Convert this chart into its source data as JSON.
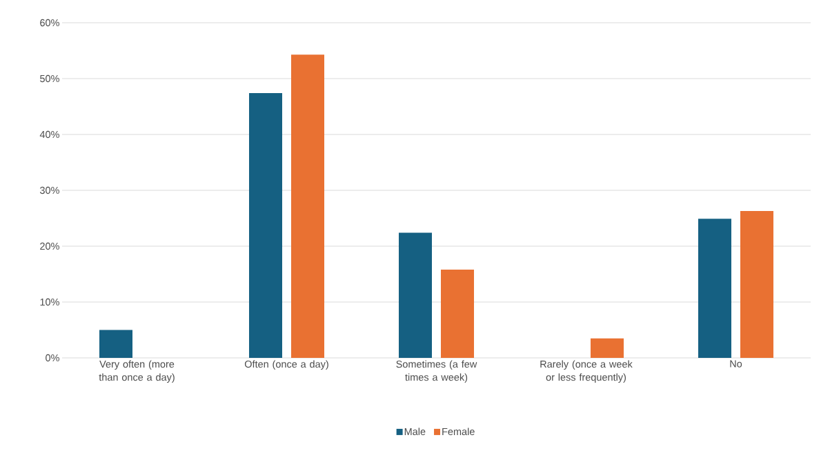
{
  "chart_data": {
    "type": "bar",
    "categories": [
      "Very often (more than once a day)",
      "Often (once a day)",
      "Sometimes (a few times a week)",
      "Rarely (once a week or less frequently)",
      "No"
    ],
    "series": [
      {
        "name": "Male",
        "color": "#156082",
        "values": [
          5.0,
          47.4,
          22.4,
          0,
          24.9
        ]
      },
      {
        "name": "Female",
        "color": "#e97132",
        "values": [
          0,
          54.3,
          15.8,
          3.5,
          26.3
        ]
      }
    ],
    "ylim": [
      0,
      60
    ],
    "yticks": [
      {
        "value": 0,
        "label": "0%"
      },
      {
        "value": 10,
        "label": "10%"
      },
      {
        "value": 20,
        "label": "20%"
      },
      {
        "value": 30,
        "label": "30%"
      },
      {
        "value": 40,
        "label": "40%"
      },
      {
        "value": 50,
        "label": "50%"
      },
      {
        "value": 60,
        "label": "60%"
      }
    ],
    "grid": "y",
    "legend": "bottom"
  }
}
